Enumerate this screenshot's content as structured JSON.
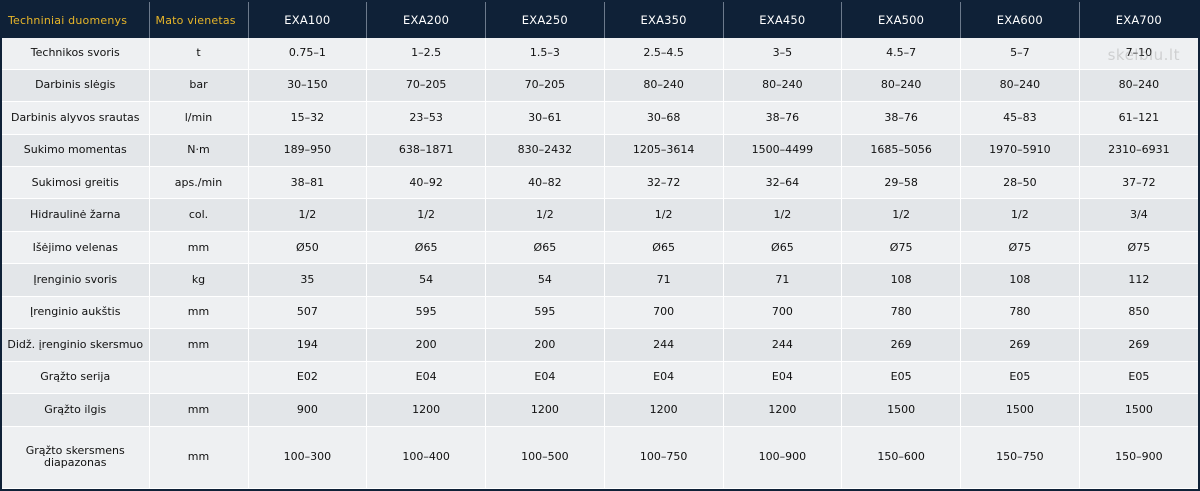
{
  "table": {
    "headers": [
      "Techniniai duomenys",
      "Mato vienetas",
      "EXA100",
      "EXA200",
      "EXA250",
      "EXA350",
      "EXA450",
      "EXA500",
      "EXA600",
      "EXA700"
    ],
    "rows": [
      [
        "Technikos svoris",
        "t",
        "0.75–1",
        "1–2.5",
        "1.5–3",
        "2.5–4.5",
        "3–5",
        "4.5–7",
        "5–7",
        "7–10"
      ],
      [
        "Darbinis slėgis",
        "bar",
        "30–150",
        "70–205",
        "70–205",
        "80–240",
        "80–240",
        "80–240",
        "80–240",
        "80–240"
      ],
      [
        "Darbinis alyvos srautas",
        "l/min",
        "15–32",
        "23–53",
        "30–61",
        "30–68",
        "38–76",
        "38–76",
        "45–83",
        "61–121"
      ],
      [
        "Sukimo momentas",
        "N·m",
        "189–950",
        "638–1871",
        "830–2432",
        "1205–3614",
        "1500–4499",
        "1685–5056",
        "1970–5910",
        "2310–6931"
      ],
      [
        "Sukimosi greitis",
        "aps./min",
        "38–81",
        "40–92",
        "40–82",
        "32–72",
        "32–64",
        "29–58",
        "28–50",
        "37–72"
      ],
      [
        "Hidraulinė žarna",
        "col.",
        "1/2",
        "1/2",
        "1/2",
        "1/2",
        "1/2",
        "1/2",
        "1/2",
        "3/4"
      ],
      [
        "Išėjimo velenas",
        "mm",
        "Ø50",
        "Ø65",
        "Ø65",
        "Ø65",
        "Ø65",
        "Ø75",
        "Ø75",
        "Ø75"
      ],
      [
        "Įrenginio svoris",
        "kg",
        "35",
        "54",
        "54",
        "71",
        "71",
        "108",
        "108",
        "112"
      ],
      [
        "Įrenginio aukštis",
        "mm",
        "507",
        "595",
        "595",
        "700",
        "700",
        "780",
        "780",
        "850"
      ],
      [
        "Didž. įrenginio skersmuo",
        "mm",
        "194",
        "200",
        "200",
        "244",
        "244",
        "269",
        "269",
        "269"
      ],
      [
        "Grąžto serija",
        "",
        "E02",
        "E04",
        "E04",
        "E04",
        "E04",
        "E05",
        "E05",
        "E05"
      ],
      [
        "Grąžto ilgis",
        "mm",
        "900",
        "1200",
        "1200",
        "1200",
        "1200",
        "1500",
        "1500",
        "1500"
      ],
      [
        "Grąžto skersmens diapazonas",
        "mm",
        "100–300",
        "100–400",
        "100–500",
        "100–750",
        "100–900",
        "150–600",
        "150–750",
        "150–900"
      ]
    ]
  },
  "watermark": "skelbiu.lt",
  "colors": {
    "header_bg": "#0f2137",
    "header_accent": "#e7b529",
    "row_light": "#eef0f2",
    "row_dark": "#e3e6e9"
  }
}
